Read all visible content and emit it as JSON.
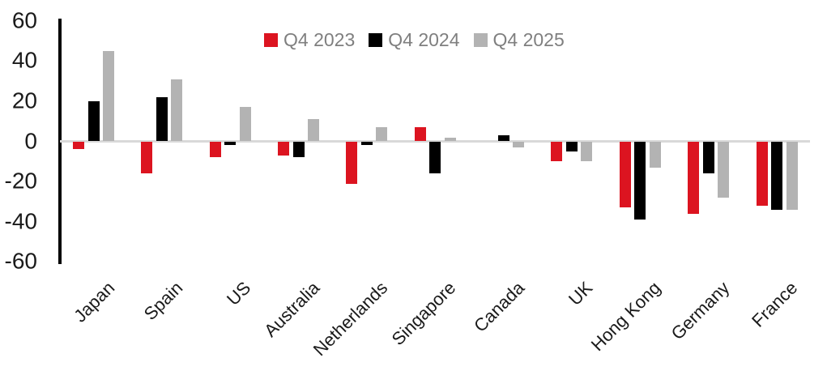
{
  "chart_data": {
    "type": "bar",
    "title": "",
    "xlabel": "",
    "ylabel": "",
    "categories": [
      "Japan",
      "Spain",
      "US",
      "Australia",
      "Netherlands",
      "Singapore",
      "Canada",
      "UK",
      "Hong Kong",
      "Germany",
      "France"
    ],
    "series": [
      {
        "name": "Q4 2023",
        "color": "#dc1420",
        "values": [
          -4,
          -16,
          -8,
          -7,
          -21,
          7,
          0,
          -10,
          -33,
          -36,
          -32
        ]
      },
      {
        "name": "Q4 2024",
        "color": "#000000",
        "values": [
          20,
          22,
          -2,
          -8,
          -2,
          -16,
          3,
          -5,
          -39,
          -16,
          -34
        ]
      },
      {
        "name": "Q4 2025",
        "color": "#b3b3b3",
        "values": [
          45,
          31,
          17,
          11,
          7,
          2,
          -3,
          -10,
          -13,
          -28,
          -34
        ]
      }
    ],
    "ylim": [
      -60,
      60
    ],
    "yticks": [
      60,
      40,
      20,
      0,
      -20,
      -40,
      -60
    ],
    "grid": false,
    "legend_position": "top-center",
    "colors": {
      "axis_line": "#000000",
      "zero_line": "#d9d9d9",
      "tick_label": "#1a1a1a",
      "category_label": "#1a1a1a",
      "legend_text": "#7f7f7f",
      "background": "#ffffff"
    }
  }
}
